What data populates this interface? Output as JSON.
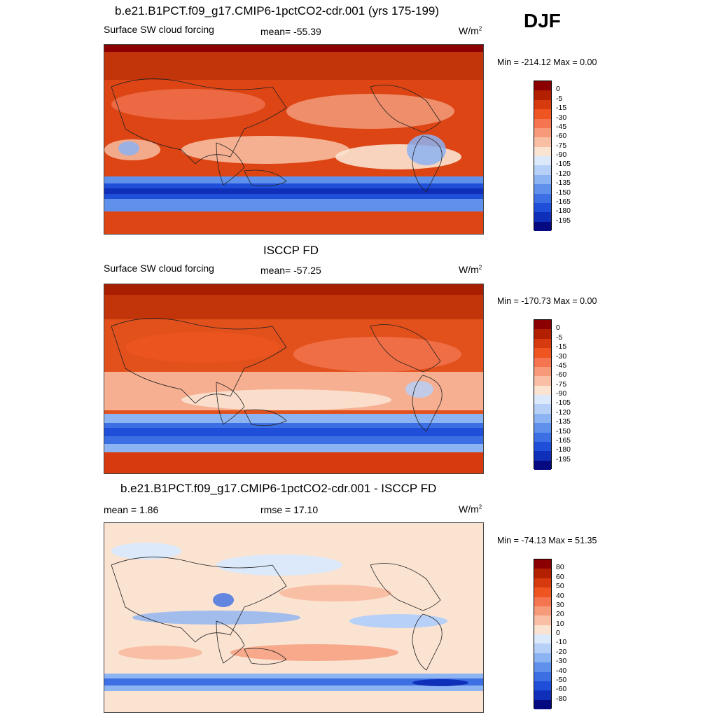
{
  "season": "DJF",
  "panels": [
    {
      "title": "b.e21.B1PCT.f09_g17.CMIP6-1pctCO2-cdr.001 (yrs 175-199)",
      "left_label": "Surface SW cloud forcing",
      "center_label": "mean= -55.39",
      "units": "W/m",
      "units_sup": "2",
      "minmax": "Min = -214.12 Max =   0.00",
      "colorbar": {
        "colors": [
          "#8b0000",
          "#b22000",
          "#d83a10",
          "#ee5520",
          "#f47550",
          "#f79a7a",
          "#f9bfa5",
          "#fbe3d2",
          "#dbe9fb",
          "#b7d0f7",
          "#8cb3f2",
          "#5f91ec",
          "#3c6ee4",
          "#1f4fd9",
          "#0f2fb9",
          "#050a80"
        ],
        "labels": [
          "0",
          "-5",
          "-15",
          "-30",
          "-45",
          "-60",
          "-75",
          "-90",
          "-105",
          "-120",
          "-135",
          "-150",
          "-165",
          "-180",
          "-195"
        ]
      }
    },
    {
      "title": "ISCCP FD",
      "left_label": "Surface SW cloud forcing",
      "center_label": "mean= -57.25",
      "units": "W/m",
      "units_sup": "2",
      "minmax": "Min = -170.73 Max =   0.00",
      "colorbar": {
        "colors": [
          "#8b0000",
          "#b22000",
          "#d83a10",
          "#ee5520",
          "#f47550",
          "#f79a7a",
          "#f9bfa5",
          "#fbe3d2",
          "#dbe9fb",
          "#b7d0f7",
          "#8cb3f2",
          "#5f91ec",
          "#3c6ee4",
          "#1f4fd9",
          "#0f2fb9",
          "#050a80"
        ],
        "labels": [
          "0",
          "-5",
          "-15",
          "-30",
          "-45",
          "-60",
          "-75",
          "-90",
          "-105",
          "-120",
          "-135",
          "-150",
          "-165",
          "-180",
          "-195"
        ]
      }
    },
    {
      "title": "b.e21.B1PCT.f09_g17.CMIP6-1pctCO2-cdr.001 - ISCCP FD",
      "left_label": "mean =   1.86",
      "center_label": "rmse =  17.10",
      "units": "W/m",
      "units_sup": "2",
      "minmax": "Min = -74.13 Max =  51.35",
      "colorbar": {
        "colors": [
          "#8b0000",
          "#b22000",
          "#d83a10",
          "#ee5520",
          "#f47550",
          "#f79a7a",
          "#f9bfa5",
          "#fbe3d2",
          "#dbe9fb",
          "#b7d0f7",
          "#8cb3f2",
          "#5f91ec",
          "#3c6ee4",
          "#1f4fd9",
          "#0f2fb9",
          "#050a80"
        ],
        "labels": [
          "80",
          "60",
          "50",
          "40",
          "30",
          "20",
          "10",
          "0",
          "-10",
          "-20",
          "-30",
          "-40",
          "-50",
          "-60",
          "-80"
        ]
      }
    }
  ],
  "chart_data": [
    {
      "type": "heatmap",
      "title": "b.e21.B1PCT.f09_g17.CMIP6-1pctCO2-cdr.001 (yrs 175-199)",
      "variable": "Surface SW cloud forcing",
      "season": "DJF",
      "mean": -55.39,
      "min": -214.12,
      "max": 0.0,
      "units": "W/m2",
      "contour_levels": [
        0,
        -5,
        -15,
        -30,
        -45,
        -60,
        -75,
        -90,
        -105,
        -120,
        -135,
        -150,
        -165,
        -180,
        -195
      ]
    },
    {
      "type": "heatmap",
      "title": "ISCCP FD",
      "variable": "Surface SW cloud forcing",
      "season": "DJF",
      "mean": -57.25,
      "min": -170.73,
      "max": 0.0,
      "units": "W/m2",
      "contour_levels": [
        0,
        -5,
        -15,
        -30,
        -45,
        -60,
        -75,
        -90,
        -105,
        -120,
        -135,
        -150,
        -165,
        -180,
        -195
      ]
    },
    {
      "type": "heatmap",
      "title": "b.e21.B1PCT.f09_g17.CMIP6-1pctCO2-cdr.001 - ISCCP FD",
      "season": "DJF",
      "mean": 1.86,
      "rmse": 17.1,
      "min": -74.13,
      "max": 51.35,
      "units": "W/m2",
      "contour_levels": [
        80,
        60,
        50,
        40,
        30,
        20,
        10,
        0,
        -10,
        -20,
        -30,
        -40,
        -50,
        -60,
        -80
      ]
    }
  ]
}
